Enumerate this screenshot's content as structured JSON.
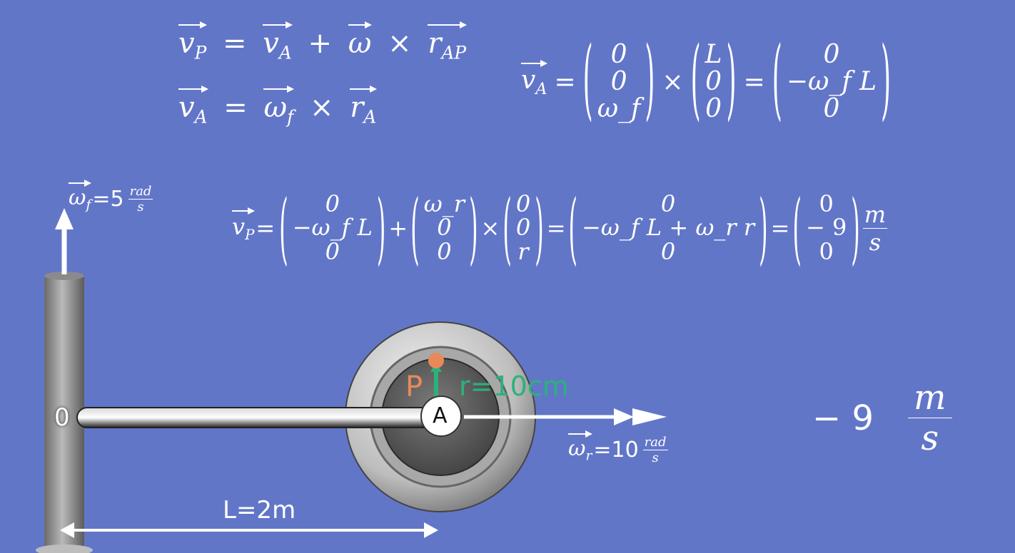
{
  "equations": {
    "line1": {
      "lhs": "v",
      "lhs_sub": "P",
      "eq": "=",
      "t1": "v",
      "t1_sub": "A",
      "plus": "+",
      "t2": "ω",
      "times": "×",
      "t3": "r",
      "t3_sub": "AP"
    },
    "line2": {
      "lhs": "v",
      "lhs_sub": "A",
      "eq": "=",
      "t1": "ω",
      "t1_sub": "f",
      "times": "×",
      "t2": "r",
      "t2_sub": "A"
    },
    "va_matrix": {
      "lhs": "v",
      "lhs_sub": "A",
      "eq": "=",
      "times": "×",
      "eq2": "=",
      "m1": [
        "0",
        "0",
        "ω_f"
      ],
      "m2": [
        "L",
        "0",
        "0"
      ],
      "m3": [
        "0",
        "−ω_f L",
        "0"
      ]
    },
    "vp_matrix": {
      "lhs": "v",
      "lhs_sub": "P",
      "eq": "=",
      "plus": "+",
      "times": "×",
      "eq2": "=",
      "eq3": "=",
      "m1": [
        "0",
        "−ω_f L",
        "0"
      ],
      "m2": [
        "ω_r",
        "0",
        "0"
      ],
      "m3": [
        "0",
        "0",
        "r"
      ],
      "m4": [
        "0",
        "−ω_f L + ω_r r",
        "0"
      ],
      "m5": [
        "0",
        "− 9",
        "0"
      ],
      "unit_num": "m",
      "unit_den": "s"
    }
  },
  "diagram": {
    "omega_f_symbol": "ω",
    "omega_f_sub": "f",
    "omega_f_value": "=5",
    "omega_f_unit_num": "rad",
    "omega_f_unit_den": "s",
    "omega_r_symbol": "ω",
    "omega_r_sub": "r",
    "omega_r_value": "=10",
    "omega_r_unit_num": "rad",
    "omega_r_unit_den": "s",
    "origin_label": "0",
    "point_a_label": "A",
    "point_p_label": "P",
    "radius_label": "r=10cm",
    "length_label": "L=2m"
  },
  "result": {
    "value": "− 9",
    "unit_num": "m",
    "unit_den": "s"
  },
  "colors": {
    "background": "#6276c8",
    "point_p": "#e8895a",
    "radius_arrow": "#2bb27a",
    "white": "#ffffff"
  }
}
